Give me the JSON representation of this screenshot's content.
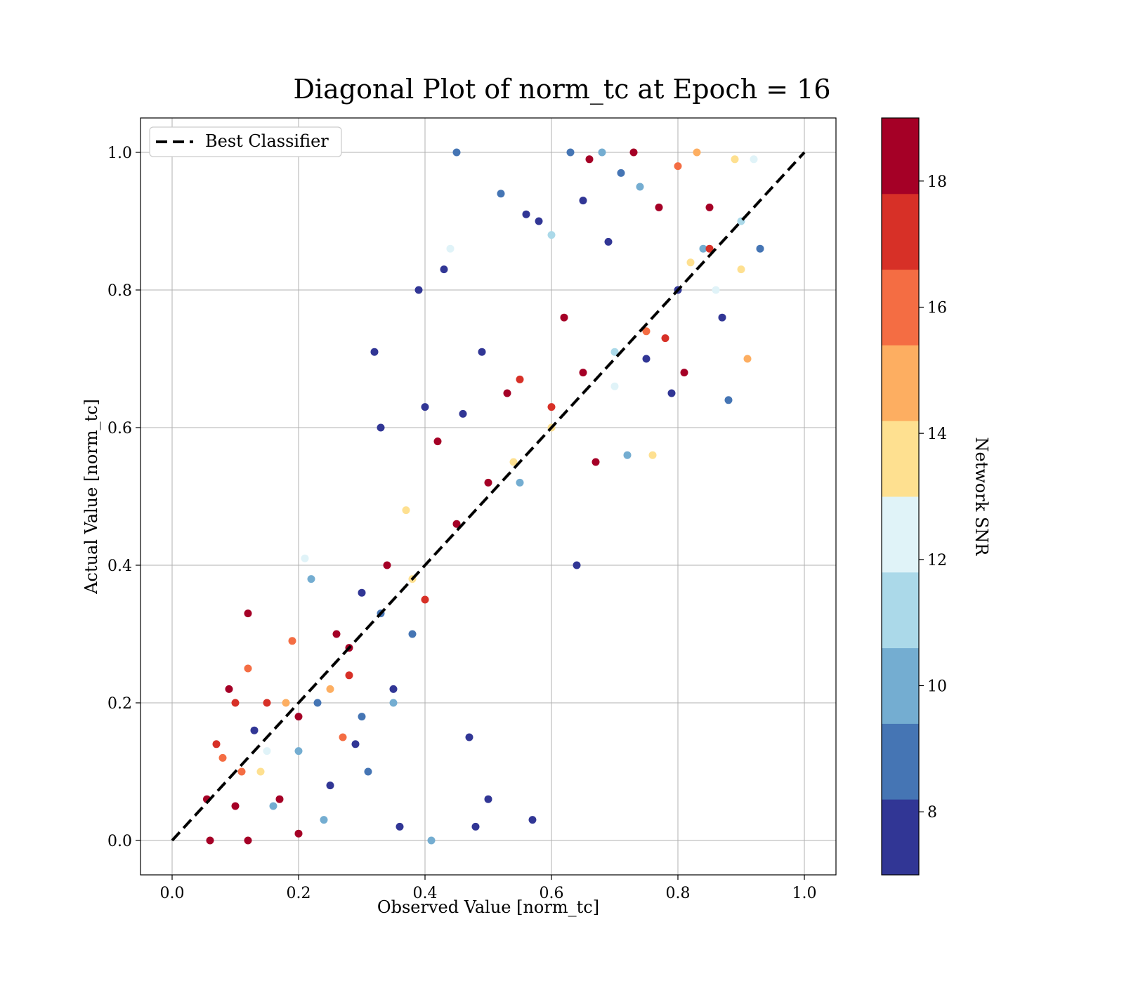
{
  "chart_data": {
    "type": "scatter",
    "title": "Diagonal Plot of norm_tc at Epoch = 16",
    "xlabel": "Observed Value [norm_tc]",
    "ylabel": "Actual Value [norm_tc]",
    "xlim": [
      -0.05,
      1.05
    ],
    "ylim": [
      -0.05,
      1.05
    ],
    "xticks": [
      0.0,
      0.2,
      0.4,
      0.6,
      0.8,
      1.0
    ],
    "yticks": [
      0.0,
      0.2,
      0.4,
      0.6,
      0.8,
      1.0
    ],
    "xtick_labels": [
      "0.0",
      "0.2",
      "0.4",
      "0.6",
      "0.8",
      "1.0"
    ],
    "ytick_labels": [
      "0.0",
      "0.2",
      "0.4",
      "0.6",
      "0.8",
      "1.0"
    ],
    "grid": true,
    "legend": {
      "placement": "top-left",
      "entries": [
        "Best Classifier"
      ]
    },
    "reference_line": {
      "label": "Best Classifier",
      "style": "dashed",
      "color": "#000000",
      "x": [
        0.0,
        1.0
      ],
      "y": [
        0.0,
        1.0
      ]
    },
    "colorbar": {
      "label": "Network SNR",
      "range": [
        7,
        19
      ],
      "ticks": [
        8,
        10,
        12,
        14,
        16,
        18
      ],
      "tick_labels": [
        "8",
        "10",
        "12",
        "14",
        "16",
        "18"
      ],
      "colors": [
        "#313695",
        "#4575b4",
        "#74add1",
        "#abd9e9",
        "#e0f3f8",
        "#fee090",
        "#fdae61",
        "#f46d43",
        "#d73027",
        "#a50026"
      ]
    },
    "points": [
      [
        0.06,
        0.0,
        18.5
      ],
      [
        0.055,
        0.06,
        18
      ],
      [
        0.07,
        0.14,
        17
      ],
      [
        0.08,
        0.12,
        16
      ],
      [
        0.09,
        0.22,
        18.5
      ],
      [
        0.1,
        0.05,
        18.5
      ],
      [
        0.1,
        0.2,
        17
      ],
      [
        0.11,
        0.1,
        16
      ],
      [
        0.12,
        0.0,
        18.5
      ],
      [
        0.12,
        0.33,
        18
      ],
      [
        0.13,
        0.16,
        8
      ],
      [
        0.14,
        0.1,
        13
      ],
      [
        0.15,
        0.2,
        17
      ],
      [
        0.16,
        0.05,
        10
      ],
      [
        0.17,
        0.06,
        18.5
      ],
      [
        0.18,
        0.2,
        15
      ],
      [
        0.19,
        0.29,
        16
      ],
      [
        0.2,
        0.01,
        18
      ],
      [
        0.2,
        0.18,
        18.5
      ],
      [
        0.21,
        0.41,
        12
      ],
      [
        0.22,
        0.38,
        10
      ],
      [
        0.23,
        0.2,
        9
      ],
      [
        0.24,
        0.03,
        10
      ],
      [
        0.25,
        0.08,
        8
      ],
      [
        0.26,
        0.3,
        18.5
      ],
      [
        0.27,
        0.15,
        16
      ],
      [
        0.28,
        0.24,
        17
      ],
      [
        0.29,
        0.14,
        7.5
      ],
      [
        0.3,
        0.36,
        8
      ],
      [
        0.31,
        0.1,
        9
      ],
      [
        0.32,
        0.71,
        7.5
      ],
      [
        0.33,
        0.6,
        7.5
      ],
      [
        0.34,
        0.4,
        18.5
      ],
      [
        0.35,
        0.2,
        10
      ],
      [
        0.36,
        0.02,
        7.5
      ],
      [
        0.37,
        0.48,
        14
      ],
      [
        0.38,
        0.3,
        9
      ],
      [
        0.39,
        0.8,
        8
      ],
      [
        0.4,
        0.63,
        7.5
      ],
      [
        0.41,
        0.0,
        10
      ],
      [
        0.42,
        0.58,
        18
      ],
      [
        0.43,
        0.83,
        8
      ],
      [
        0.44,
        0.86,
        12
      ],
      [
        0.45,
        1.0,
        9
      ],
      [
        0.46,
        0.62,
        7.5
      ],
      [
        0.47,
        0.15,
        7.5
      ],
      [
        0.48,
        0.02,
        7.5
      ],
      [
        0.49,
        0.71,
        7.5
      ],
      [
        0.5,
        0.06,
        7.5
      ],
      [
        0.5,
        0.52,
        18.5
      ],
      [
        0.52,
        0.94,
        9
      ],
      [
        0.53,
        0.65,
        18
      ],
      [
        0.54,
        0.55,
        13
      ],
      [
        0.55,
        0.67,
        17
      ],
      [
        0.56,
        0.91,
        8
      ],
      [
        0.57,
        0.03,
        7.5
      ],
      [
        0.58,
        0.9,
        7.5
      ],
      [
        0.6,
        0.88,
        11
      ],
      [
        0.6,
        0.63,
        17
      ],
      [
        0.62,
        0.76,
        18.5
      ],
      [
        0.63,
        1.0,
        9
      ],
      [
        0.64,
        0.4,
        7.5
      ],
      [
        0.65,
        0.93,
        7.5
      ],
      [
        0.66,
        0.99,
        18.5
      ],
      [
        0.67,
        0.55,
        18.5
      ],
      [
        0.68,
        1.0,
        10
      ],
      [
        0.69,
        0.87,
        8
      ],
      [
        0.7,
        0.66,
        12
      ],
      [
        0.71,
        0.97,
        9
      ],
      [
        0.72,
        0.56,
        10
      ],
      [
        0.73,
        1.0,
        18.5
      ],
      [
        0.74,
        0.95,
        10
      ],
      [
        0.75,
        0.7,
        8
      ],
      [
        0.76,
        0.56,
        14
      ],
      [
        0.77,
        0.92,
        18
      ],
      [
        0.78,
        0.73,
        17
      ],
      [
        0.79,
        0.65,
        7.5
      ],
      [
        0.8,
        0.98,
        16
      ],
      [
        0.81,
        0.68,
        18
      ],
      [
        0.82,
        0.84,
        13
      ],
      [
        0.83,
        1.0,
        15
      ],
      [
        0.84,
        0.86,
        10
      ],
      [
        0.85,
        0.92,
        18.5
      ],
      [
        0.86,
        0.8,
        12
      ],
      [
        0.87,
        0.76,
        7.5
      ],
      [
        0.88,
        0.64,
        9
      ],
      [
        0.89,
        0.99,
        14
      ],
      [
        0.9,
        0.83,
        13
      ],
      [
        0.91,
        0.7,
        15
      ],
      [
        0.92,
        0.99,
        12
      ],
      [
        0.93,
        0.86,
        9
      ],
      [
        0.12,
        0.25,
        16
      ],
      [
        0.15,
        0.13,
        12
      ],
      [
        0.2,
        0.13,
        10
      ],
      [
        0.25,
        0.22,
        15
      ],
      [
        0.3,
        0.18,
        9
      ],
      [
        0.35,
        0.22,
        7.5
      ],
      [
        0.4,
        0.35,
        17
      ],
      [
        0.45,
        0.46,
        18.5
      ],
      [
        0.55,
        0.52,
        10
      ],
      [
        0.6,
        0.6,
        13
      ],
      [
        0.65,
        0.68,
        18.5
      ],
      [
        0.7,
        0.71,
        11
      ],
      [
        0.75,
        0.74,
        16
      ],
      [
        0.8,
        0.8,
        8
      ],
      [
        0.85,
        0.86,
        17
      ],
      [
        0.9,
        0.9,
        11
      ],
      [
        0.38,
        0.38,
        14
      ],
      [
        0.33,
        0.33,
        9
      ],
      [
        0.28,
        0.28,
        18
      ]
    ]
  }
}
